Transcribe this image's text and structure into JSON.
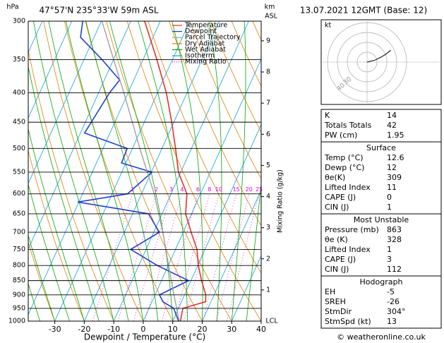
{
  "chart_data": {
    "type": "skew-t",
    "title": "47°57'N 235°33'W 59m ASL",
    "subtitle": "13.07.2021 12GMT (Base: 12)",
    "x_label": "Dewpoint / Temperature (°C)",
    "y_label": "hPa",
    "km_label": "km",
    "asl_label": "ASL",
    "mixing_ratio_label": "Mixing Ratio (g/kg)",
    "lcl_label": "LCL",
    "log_scale": true,
    "grid": true,
    "xlim": [
      -39,
      40
    ],
    "xticks": [
      -30,
      -20,
      -10,
      0,
      10,
      20,
      30,
      40
    ],
    "ylim": [
      1000,
      300
    ],
    "yticks": [
      300,
      350,
      400,
      450,
      500,
      550,
      600,
      650,
      700,
      750,
      800,
      850,
      900,
      950,
      1000
    ],
    "km_ticks": [
      1,
      2,
      3,
      4,
      5,
      6,
      7,
      8,
      9
    ],
    "mixing_ratios": [
      1,
      2,
      3,
      4,
      6,
      8,
      10,
      15,
      20,
      25
    ],
    "series": [
      {
        "name": "Temperature",
        "color": "#e8302a",
        "pressure": [
          1000,
          950,
          925,
          900,
          850,
          800,
          750,
          700,
          650,
          600,
          550,
          500,
          450,
          400,
          350,
          300
        ],
        "values": [
          12.6,
          11.5,
          18.2,
          17.2,
          13.6,
          10.2,
          7.3,
          2.7,
          -2.0,
          -4.6,
          -10.8,
          -15.4,
          -20.7,
          -27,
          -35.3,
          -45.3
        ]
      },
      {
        "name": "Dewpoint",
        "color": "#2040d0",
        "pressure": [
          1000,
          950,
          925,
          900,
          850,
          800,
          750,
          700,
          650,
          620,
          600,
          550,
          530,
          500,
          470,
          400,
          380,
          350,
          320,
          300
        ],
        "values": [
          12,
          8.4,
          3.7,
          1.5,
          9.2,
          -3.7,
          -15.2,
          -8.1,
          -14.6,
          -40.4,
          -24.8,
          -19.8,
          -31.5,
          -31.8,
          -48.6,
          -46.3,
          -44.8,
          -53.9,
          -64.6,
          -66.3
        ]
      },
      {
        "name": "Parcel Trajectory",
        "color": "#a0a0a0",
        "pressure": [
          1000,
          900,
          800,
          700,
          600,
          500,
          400,
          300
        ],
        "values": [
          12.2,
          6.4,
          0.1,
          -6.9,
          -15.7,
          -27.5,
          -41.4,
          -59.8
        ]
      }
    ],
    "reference_lines": [
      {
        "name": "Dry Adiabat",
        "color": "#e08000"
      },
      {
        "name": "Wet Adiabat",
        "color": "#00a800"
      },
      {
        "name": "Isotherm",
        "color": "#10a0e0"
      },
      {
        "name": "Mixing Ratio",
        "color": "#e000e0"
      }
    ],
    "hodograph": {
      "unit_label": "kt",
      "ring_labels": [
        30,
        40
      ],
      "color": "#000000",
      "u": [
        0,
        8,
        14,
        19,
        24
      ],
      "v": [
        0,
        2,
        5,
        8,
        12
      ]
    }
  },
  "stats": [
    {
      "rows": [
        [
          "K",
          "14"
        ],
        [
          "Totals Totals",
          "42"
        ],
        [
          "PW (cm)",
          "1.95"
        ]
      ]
    },
    {
      "title": "Surface",
      "rows": [
        [
          "Temp (°C)",
          "12.6"
        ],
        [
          "Dewp (°C)",
          "12"
        ],
        [
          "θe(K)",
          "309"
        ],
        [
          "Lifted Index",
          "11"
        ],
        [
          "CAPE (J)",
          "0"
        ],
        [
          "CIN (J)",
          "1"
        ]
      ]
    },
    {
      "title": "Most Unstable",
      "rows": [
        [
          "Pressure (mb)",
          "863"
        ],
        [
          "θe (K)",
          "328"
        ],
        [
          "Lifted Index",
          "1"
        ],
        [
          "CAPE (J)",
          "3"
        ],
        [
          "CIN (J)",
          "112"
        ]
      ]
    },
    {
      "title": "Hodograph",
      "rows": [
        [
          "EH",
          "-5"
        ],
        [
          "SREH",
          "-26"
        ],
        [
          "StmDir",
          "304°"
        ],
        [
          "StmSpd (kt)",
          "13"
        ]
      ]
    }
  ],
  "footer": "© weatheronline.co.uk"
}
